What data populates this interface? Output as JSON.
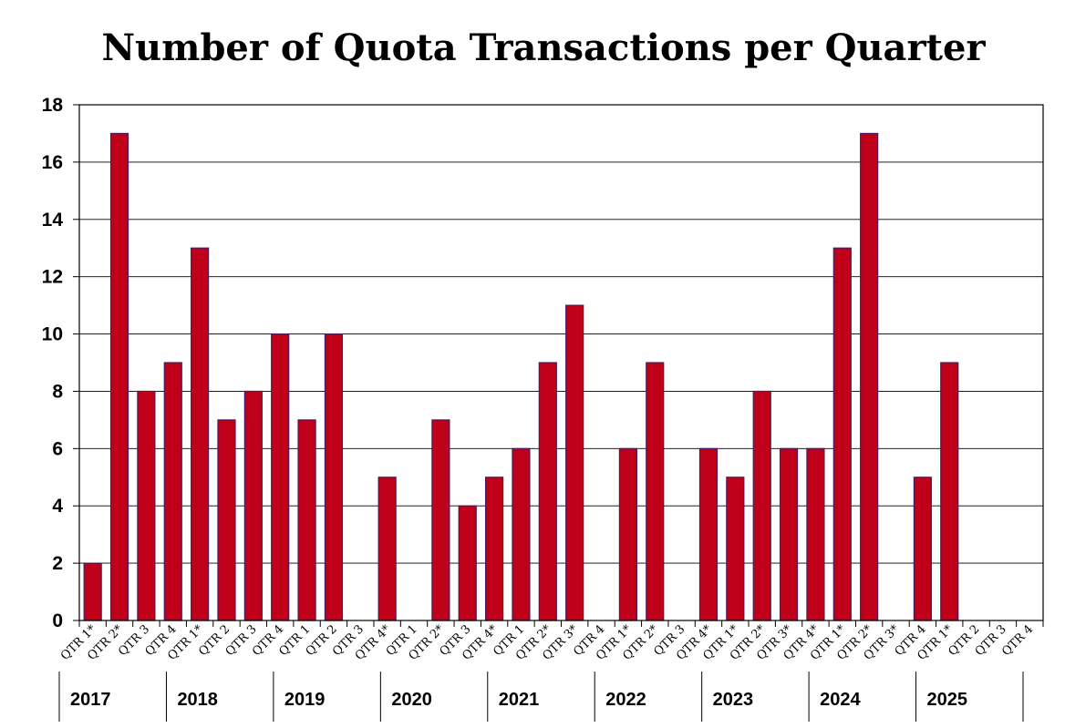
{
  "chart_data": {
    "type": "bar",
    "title": "Number of Quota Transactions per Quarter",
    "xlabel": "",
    "ylabel": "",
    "ylim": [
      0,
      18
    ],
    "yticks": [
      0,
      2,
      4,
      6,
      8,
      10,
      12,
      14,
      16,
      18
    ],
    "grid": true,
    "bar_color": "#C00018",
    "categories": [
      "QTR 1*",
      "QTR 2*",
      "QTR 3",
      "QTR 4",
      "QTR 1*",
      "QTR 2",
      "QTR 3",
      "QTR 4",
      "QTR 1",
      "QTR 2",
      "QTR 3",
      "QTR 4*",
      "QTR 1",
      "QTR 2*",
      "QTR 3",
      "QTR 4*",
      "QTR 1",
      "QTR 2*",
      "QTR 3*",
      "QTR 4",
      "QTR 1*",
      "QTR 2*",
      "QTR 3",
      "QTR 4*",
      "QTR 1*",
      "QTR 2*",
      "QTR 3*",
      "QTR 4*",
      "QTR 1*",
      "QTR 2*",
      "QTR 3*",
      "QTR 4",
      "QTR 1*",
      "QTR 2",
      "QTR 3",
      "QTR 4"
    ],
    "values": [
      2,
      17,
      8,
      9,
      13,
      7,
      8,
      10,
      7,
      10,
      0,
      5,
      0,
      7,
      4,
      5,
      6,
      9,
      11,
      0,
      6,
      9,
      0,
      6,
      5,
      8,
      6,
      6,
      13,
      17,
      0,
      5,
      9,
      0,
      0,
      0
    ],
    "years": [
      "2017",
      "2018",
      "2019",
      "2020",
      "2021",
      "2022",
      "2023",
      "2024",
      "2025"
    ]
  }
}
